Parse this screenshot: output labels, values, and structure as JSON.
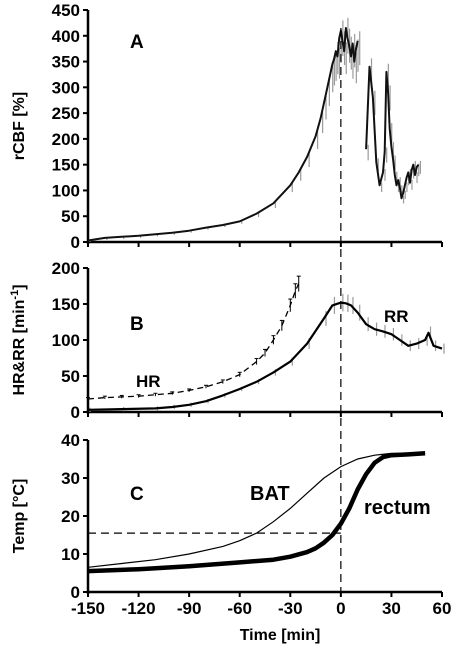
{
  "chart_data": [
    {
      "type": "line",
      "panel": "A",
      "ylabel": "rCBF [%]",
      "xlabel": "",
      "xlim": [
        -150,
        60
      ],
      "ylim": [
        0,
        450
      ],
      "yticks": [
        0,
        50,
        100,
        150,
        200,
        250,
        300,
        350,
        400,
        450
      ],
      "series": [
        {
          "color": "#000000",
          "error_bars": "gray",
          "x": [
            -150,
            -140,
            -130,
            -120,
            -110,
            -100,
            -90,
            -80,
            -70,
            -60,
            -50,
            -40,
            -30,
            -25,
            -20,
            -15,
            -12,
            -10,
            -8,
            -6,
            -5,
            -4,
            -3,
            -2,
            -1,
            0,
            1,
            2,
            3,
            4,
            5,
            6,
            7,
            8,
            9,
            10
          ],
          "y": [
            3,
            8,
            10,
            12,
            15,
            18,
            22,
            28,
            33,
            40,
            55,
            75,
            110,
            135,
            165,
            205,
            240,
            270,
            300,
            330,
            345,
            355,
            370,
            360,
            395,
            410,
            390,
            370,
            415,
            395,
            380,
            360,
            385,
            350,
            375,
            390
          ]
        },
        {
          "color": "#000000",
          "error_bars": "gray",
          "x": [
            15,
            17,
            19,
            21,
            23,
            25,
            26,
            27,
            28,
            29,
            30,
            31,
            32,
            33,
            34,
            35,
            36,
            37,
            38,
            39,
            40,
            41,
            42,
            43,
            44,
            45,
            46
          ],
          "y": [
            180,
            340,
            280,
            155,
            110,
            135,
            175,
            330,
            290,
            220,
            185,
            160,
            130,
            110,
            120,
            105,
            85,
            95,
            110,
            125,
            135,
            115,
            140,
            150,
            130,
            145,
            150
          ]
        }
      ],
      "annotations": []
    },
    {
      "type": "line",
      "panel": "B",
      "ylabel": "HR&RR [min-1]",
      "ylabel_main": "HR&RR [min",
      "ylabel_sup": "-1",
      "ylabel_end": "]",
      "xlabel": "",
      "xlim": [
        -150,
        60
      ],
      "ylim": [
        0,
        200
      ],
      "yticks": [
        0,
        50,
        100,
        150,
        200
      ],
      "series": [
        {
          "name": "HR",
          "style": "dashed",
          "x": [
            -150,
            -140,
            -130,
            -120,
            -110,
            -100,
            -90,
            -80,
            -70,
            -60,
            -50,
            -45,
            -40,
            -35,
            -30,
            -27,
            -25
          ],
          "y": [
            18,
            20,
            21,
            22,
            24,
            26,
            30,
            35,
            42,
            52,
            70,
            82,
            100,
            120,
            148,
            168,
            178
          ]
        },
        {
          "name": "RR",
          "style": "solid",
          "x": [
            -150,
            -130,
            -110,
            -100,
            -90,
            -80,
            -70,
            -60,
            -50,
            -40,
            -30,
            -20,
            -10,
            -5,
            0,
            3,
            6,
            10,
            15,
            20,
            25,
            30,
            35,
            40,
            45,
            50,
            52,
            55,
            60
          ],
          "y": [
            3,
            4,
            5,
            7,
            10,
            15,
            23,
            32,
            42,
            55,
            70,
            95,
            130,
            148,
            152,
            151,
            148,
            138,
            122,
            115,
            112,
            108,
            100,
            92,
            95,
            100,
            110,
            92,
            88
          ]
        }
      ],
      "annotations": [
        "HR",
        "RR"
      ]
    },
    {
      "type": "line",
      "panel": "C",
      "ylabel": "Temp [°C]",
      "xlabel": "Time [min]",
      "xlim": [
        -150,
        60
      ],
      "ylim": [
        0,
        40
      ],
      "yticks": [
        0,
        10,
        20,
        30,
        40
      ],
      "xticks": [
        -150,
        -120,
        -90,
        -60,
        -30,
        0,
        30,
        60
      ],
      "series": [
        {
          "name": "BAT",
          "style": "thin",
          "x": [
            -150,
            -130,
            -110,
            -90,
            -70,
            -60,
            -50,
            -40,
            -30,
            -20,
            -10,
            0,
            10,
            20,
            30,
            40,
            50
          ],
          "y": [
            6.5,
            7.5,
            8.5,
            10,
            12,
            13.5,
            15.5,
            18.5,
            22,
            26,
            30,
            33,
            35,
            36,
            36.5,
            36.5,
            36.5
          ]
        },
        {
          "name": "rectum",
          "style": "thick",
          "x": [
            -150,
            -120,
            -90,
            -60,
            -40,
            -30,
            -20,
            -15,
            -10,
            -5,
            0,
            5,
            10,
            15,
            20,
            25,
            30,
            40,
            50
          ],
          "y": [
            5.5,
            6.0,
            6.8,
            7.8,
            8.5,
            9.3,
            10.5,
            11.5,
            13,
            15,
            18,
            22,
            27,
            31,
            34,
            35.5,
            36,
            36.2,
            36.5
          ]
        }
      ],
      "reference_line_y": 15.5,
      "annotations": [
        "BAT",
        "rectum"
      ]
    }
  ],
  "shared": {
    "vertical_reference_x": 0
  }
}
